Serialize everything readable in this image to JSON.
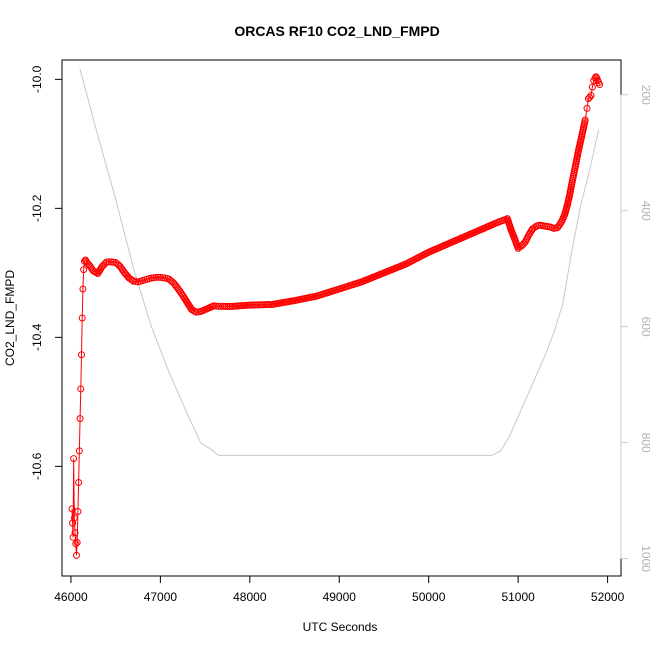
{
  "chart_data": {
    "type": "scatter",
    "title": "ORCAS RF10 CO2_LND_FMPD",
    "xlabel": "UTC Seconds",
    "ylabel": "CO2_LND_FMPD",
    "xlim": [
      45900,
      52150
    ],
    "ylim": [
      -10.77,
      -9.97
    ],
    "xticks": [
      46000,
      47000,
      48000,
      49000,
      50000,
      51000,
      52000
    ],
    "yticks": [
      -10.6,
      -10.4,
      -10.2,
      -10.0
    ],
    "right_axis": {
      "lim": [
        1030,
        140
      ],
      "ticks": [
        200,
        400,
        600,
        800,
        1000
      ],
      "color": "#c8c8c8"
    },
    "grid": false,
    "series": [
      {
        "marker": "open-circle",
        "line": true,
        "color": "#ff0000",
        "x": [
          46012,
          46018,
          46024,
          46030,
          46038,
          46046,
          46054,
          46062,
          46070,
          46078,
          46086,
          46094,
          46102,
          46110,
          46118,
          46126,
          46134,
          46142,
          46152,
          46162,
          46172,
          46182,
          46200,
          46250,
          46300,
          46350,
          46400,
          46450,
          46500,
          46550,
          46600,
          46650,
          46700,
          46750,
          46800,
          46850,
          46900,
          46950,
          47000,
          47050,
          47100,
          47150,
          47200,
          47250,
          47300,
          47350,
          47400,
          47450,
          47500,
          47550,
          47600,
          47650,
          47700,
          47800,
          48000,
          48250,
          48500,
          48750,
          49000,
          49250,
          49500,
          49750,
          50000,
          50250,
          50500,
          50750,
          50880,
          50920,
          50960,
          51000,
          51040,
          51080,
          51120,
          51160,
          51200,
          51240,
          51280,
          51320,
          51360,
          51400,
          51440,
          51480,
          51520,
          51550,
          51575,
          51600,
          51625,
          51650,
          51675,
          51700,
          51725,
          51750,
          51770,
          51785,
          51800,
          51815,
          51830,
          51845,
          51860,
          51870,
          51880,
          51890,
          51900,
          51910
        ],
        "y": [
          -10.666,
          -10.688,
          -10.71,
          -10.588,
          -10.68,
          -10.703,
          -10.72,
          -10.738,
          -10.718,
          -10.67,
          -10.625,
          -10.576,
          -10.526,
          -10.48,
          -10.427,
          -10.37,
          -10.325,
          -10.295,
          -10.282,
          -10.28,
          -10.282,
          -10.285,
          -10.287,
          -10.297,
          -10.301,
          -10.29,
          -10.283,
          -10.283,
          -10.284,
          -10.29,
          -10.3,
          -10.308,
          -10.313,
          -10.314,
          -10.312,
          -10.31,
          -10.308,
          -10.307,
          -10.307,
          -10.308,
          -10.31,
          -10.316,
          -10.325,
          -10.335,
          -10.346,
          -10.357,
          -10.361,
          -10.36,
          -10.357,
          -10.354,
          -10.351,
          -10.352,
          -10.352,
          -10.352,
          -10.35,
          -10.349,
          -10.343,
          -10.336,
          -10.325,
          -10.314,
          -10.3,
          -10.286,
          -10.268,
          -10.253,
          -10.238,
          -10.223,
          -10.216,
          -10.233,
          -10.247,
          -10.262,
          -10.258,
          -10.252,
          -10.241,
          -10.232,
          -10.228,
          -10.226,
          -10.227,
          -10.228,
          -10.229,
          -10.231,
          -10.23,
          -10.222,
          -10.21,
          -10.195,
          -10.18,
          -10.162,
          -10.145,
          -10.128,
          -10.11,
          -10.095,
          -10.079,
          -10.063,
          -10.045,
          -10.03,
          -10.028,
          -10.025,
          -10.012,
          -10.002,
          -9.998,
          -9.996,
          -9.998,
          -10.002,
          -10.005,
          -10.008
        ]
      },
      {
        "marker": "none",
        "line": true,
        "color": "#c8c8c8",
        "axis": "right",
        "x": [
          46100,
          46300,
          46500,
          46700,
          46900,
          47100,
          47300,
          47450,
          47550,
          47650,
          48000,
          49000,
          50000,
          50700,
          50800,
          50900,
          51000,
          51100,
          51200,
          51300,
          51400,
          51500,
          51600,
          51700,
          51800,
          51900
        ],
        "y": [
          155,
          270,
          380,
          500,
          600,
          680,
          750,
          800,
          810,
          822,
          822,
          822,
          822,
          822,
          815,
          790,
          755,
          720,
          685,
          650,
          610,
          560,
          470,
          390,
          330,
          260
        ]
      }
    ]
  }
}
